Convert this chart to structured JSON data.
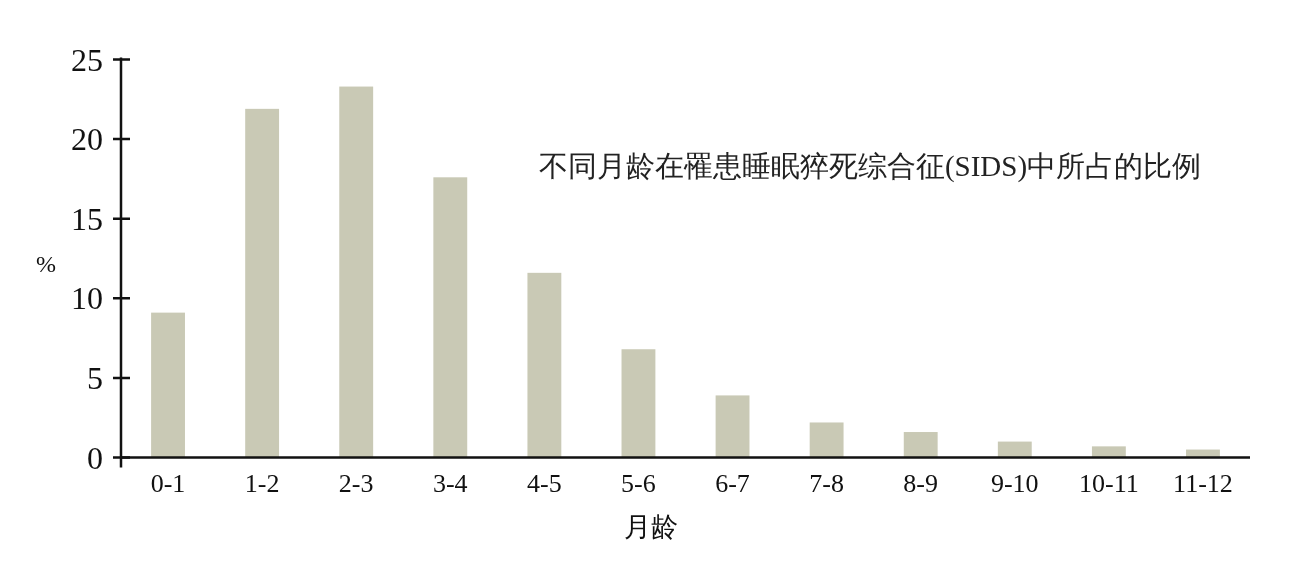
{
  "chart_data": {
    "type": "bar",
    "title": "不同月龄在罹患睡眠猝死综合征(SIDS)中所占的比例",
    "xlabel": "月龄",
    "ylabel": "%",
    "categories": [
      "0-1",
      "1-2",
      "2-3",
      "3-4",
      "4-5",
      "5-6",
      "6-7",
      "7-8",
      "8-9",
      "9-10",
      "10-11",
      "11-12"
    ],
    "values": [
      9.1,
      21.9,
      23.3,
      17.6,
      11.6,
      6.8,
      3.9,
      2.2,
      1.6,
      1.0,
      0.7,
      0.5
    ],
    "color": "#c9c9b5",
    "ylim": [
      0,
      25
    ],
    "yticks": [
      0,
      5,
      10,
      15,
      20,
      25
    ]
  }
}
